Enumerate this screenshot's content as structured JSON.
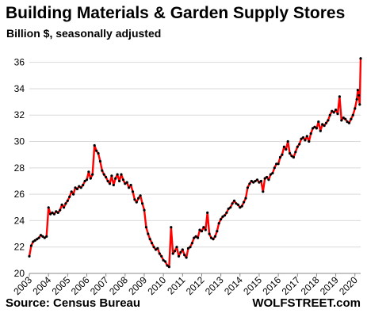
{
  "chart_data": {
    "type": "line",
    "title": "Building Materials & Garden Supply Stores",
    "subtitle": "Billion $, seasonally adjusted",
    "xlabel": "",
    "ylabel": "",
    "xlim": [
      2003,
      2020.3
    ],
    "ylim": [
      20,
      37
    ],
    "x_ticks": [
      "2003",
      "2004",
      "2005",
      "2006",
      "2007",
      "2008",
      "2009",
      "2010",
      "2011",
      "2012",
      "2013",
      "2014",
      "2015",
      "2016",
      "2017",
      "2018",
      "2019",
      "2020"
    ],
    "y_ticks": [
      "20",
      "22",
      "24",
      "26",
      "28",
      "30",
      "32",
      "34",
      "36"
    ],
    "grid": "horizontal",
    "line_color": "#ff0000",
    "marker_color": "#000000",
    "series": [
      {
        "values": [
          [
            2003.0,
            21.3
          ],
          [
            2003.1,
            22.1
          ],
          [
            2003.2,
            22.4
          ],
          [
            2003.3,
            22.5
          ],
          [
            2003.4,
            22.6
          ],
          [
            2003.5,
            22.7
          ],
          [
            2003.6,
            22.9
          ],
          [
            2003.7,
            22.8
          ],
          [
            2003.8,
            22.7
          ],
          [
            2003.9,
            22.8
          ],
          [
            2004.0,
            25.0
          ],
          [
            2004.1,
            24.5
          ],
          [
            2004.2,
            24.6
          ],
          [
            2004.3,
            24.5
          ],
          [
            2004.4,
            24.7
          ],
          [
            2004.5,
            24.6
          ],
          [
            2004.6,
            24.8
          ],
          [
            2004.7,
            25.2
          ],
          [
            2004.8,
            25.0
          ],
          [
            2004.9,
            25.3
          ],
          [
            2005.0,
            25.5
          ],
          [
            2005.1,
            25.8
          ],
          [
            2005.2,
            26.2
          ],
          [
            2005.3,
            26.0
          ],
          [
            2005.4,
            26.5
          ],
          [
            2005.5,
            26.4
          ],
          [
            2005.6,
            26.6
          ],
          [
            2005.7,
            26.5
          ],
          [
            2005.8,
            26.7
          ],
          [
            2005.9,
            27.0
          ],
          [
            2006.0,
            27.1
          ],
          [
            2006.1,
            27.7
          ],
          [
            2006.2,
            27.2
          ],
          [
            2006.3,
            27.5
          ],
          [
            2006.4,
            29.7
          ],
          [
            2006.5,
            29.3
          ],
          [
            2006.6,
            29.1
          ],
          [
            2006.7,
            28.5
          ],
          [
            2006.8,
            27.8
          ],
          [
            2006.9,
            27.5
          ],
          [
            2007.0,
            27.3
          ],
          [
            2007.1,
            27.0
          ],
          [
            2007.2,
            26.8
          ],
          [
            2007.3,
            27.4
          ],
          [
            2007.4,
            26.7
          ],
          [
            2007.5,
            27.2
          ],
          [
            2007.6,
            27.5
          ],
          [
            2007.7,
            27.0
          ],
          [
            2007.8,
            27.5
          ],
          [
            2007.9,
            27.1
          ],
          [
            2008.0,
            26.8
          ],
          [
            2008.1,
            26.9
          ],
          [
            2008.2,
            26.5
          ],
          [
            2008.3,
            26.7
          ],
          [
            2008.4,
            26.2
          ],
          [
            2008.5,
            25.6
          ],
          [
            2008.6,
            25.4
          ],
          [
            2008.7,
            25.7
          ],
          [
            2008.8,
            25.9
          ],
          [
            2008.9,
            25.3
          ],
          [
            2009.0,
            24.8
          ],
          [
            2009.1,
            23.5
          ],
          [
            2009.2,
            23.0
          ],
          [
            2009.3,
            22.6
          ],
          [
            2009.4,
            22.3
          ],
          [
            2009.5,
            22.0
          ],
          [
            2009.6,
            21.8
          ],
          [
            2009.7,
            21.9
          ],
          [
            2009.8,
            21.5
          ],
          [
            2009.9,
            21.3
          ],
          [
            2010.0,
            21.0
          ],
          [
            2010.1,
            20.9
          ],
          [
            2010.2,
            20.6
          ],
          [
            2010.3,
            20.5
          ],
          [
            2010.4,
            23.5
          ],
          [
            2010.5,
            21.5
          ],
          [
            2010.6,
            21.7
          ],
          [
            2010.7,
            22.0
          ],
          [
            2010.8,
            21.3
          ],
          [
            2010.9,
            21.6
          ],
          [
            2011.0,
            21.8
          ],
          [
            2011.1,
            21.4
          ],
          [
            2011.2,
            21.2
          ],
          [
            2011.3,
            21.9
          ],
          [
            2011.4,
            22.0
          ],
          [
            2011.5,
            22.3
          ],
          [
            2011.6,
            22.7
          ],
          [
            2011.7,
            22.8
          ],
          [
            2011.8,
            22.7
          ],
          [
            2011.9,
            23.3
          ],
          [
            2012.0,
            23.2
          ],
          [
            2012.1,
            23.5
          ],
          [
            2012.2,
            23.3
          ],
          [
            2012.3,
            24.6
          ],
          [
            2012.4,
            23.0
          ],
          [
            2012.5,
            22.7
          ],
          [
            2012.6,
            22.6
          ],
          [
            2012.7,
            22.8
          ],
          [
            2012.8,
            23.2
          ],
          [
            2012.9,
            23.8
          ],
          [
            2013.0,
            24.1
          ],
          [
            2013.1,
            24.3
          ],
          [
            2013.2,
            24.4
          ],
          [
            2013.3,
            24.6
          ],
          [
            2013.4,
            24.9
          ],
          [
            2013.5,
            25.0
          ],
          [
            2013.6,
            25.3
          ],
          [
            2013.7,
            25.5
          ],
          [
            2013.8,
            25.3
          ],
          [
            2013.9,
            25.2
          ],
          [
            2014.0,
            25.0
          ],
          [
            2014.1,
            25.1
          ],
          [
            2014.2,
            25.4
          ],
          [
            2014.3,
            25.7
          ],
          [
            2014.4,
            26.5
          ],
          [
            2014.5,
            26.8
          ],
          [
            2014.6,
            27.0
          ],
          [
            2014.7,
            26.9
          ],
          [
            2014.8,
            27.0
          ],
          [
            2014.9,
            27.1
          ],
          [
            2015.0,
            26.9
          ],
          [
            2015.1,
            27.0
          ],
          [
            2015.2,
            26.2
          ],
          [
            2015.3,
            27.2
          ],
          [
            2015.4,
            27.3
          ],
          [
            2015.5,
            27.1
          ],
          [
            2015.6,
            27.5
          ],
          [
            2015.7,
            27.6
          ],
          [
            2015.8,
            28.0
          ],
          [
            2015.9,
            28.3
          ],
          [
            2016.0,
            28.3
          ],
          [
            2016.1,
            28.8
          ],
          [
            2016.2,
            29.0
          ],
          [
            2016.3,
            29.6
          ],
          [
            2016.4,
            29.4
          ],
          [
            2016.5,
            30.0
          ],
          [
            2016.6,
            29.1
          ],
          [
            2016.7,
            28.9
          ],
          [
            2016.8,
            28.8
          ],
          [
            2016.9,
            29.2
          ],
          [
            2017.0,
            29.6
          ],
          [
            2017.1,
            29.8
          ],
          [
            2017.2,
            30.2
          ],
          [
            2017.3,
            30.3
          ],
          [
            2017.4,
            30.1
          ],
          [
            2017.5,
            30.4
          ],
          [
            2017.6,
            30.0
          ],
          [
            2017.7,
            30.6
          ],
          [
            2017.8,
            31.0
          ],
          [
            2017.9,
            31.1
          ],
          [
            2018.0,
            31.0
          ],
          [
            2018.1,
            31.5
          ],
          [
            2018.2,
            30.8
          ],
          [
            2018.3,
            31.3
          ],
          [
            2018.4,
            31.2
          ],
          [
            2018.5,
            31.4
          ],
          [
            2018.6,
            31.6
          ],
          [
            2018.7,
            32.0
          ],
          [
            2018.8,
            32.3
          ],
          [
            2018.9,
            32.2
          ],
          [
            2019.0,
            32.4
          ],
          [
            2019.1,
            32.1
          ],
          [
            2019.2,
            33.4
          ],
          [
            2019.3,
            31.6
          ],
          [
            2019.4,
            31.8
          ],
          [
            2019.5,
            31.7
          ],
          [
            2019.6,
            31.5
          ],
          [
            2019.7,
            31.4
          ],
          [
            2019.8,
            31.7
          ],
          [
            2019.9,
            32.0
          ],
          [
            2020.0,
            32.5
          ],
          [
            2020.1,
            33.2
          ],
          [
            2020.15,
            33.9
          ],
          [
            2020.2,
            33.5
          ],
          [
            2020.25,
            32.8
          ],
          [
            2020.3,
            36.3
          ]
        ]
      }
    ]
  },
  "footer": {
    "source": "Source: Census Bureau",
    "credit": "WOLFSTREET.com"
  }
}
